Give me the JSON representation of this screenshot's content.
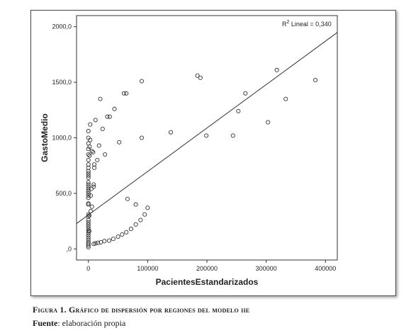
{
  "chart_data": {
    "type": "scatter",
    "xlabel": "PacientesEstandarizados",
    "ylabel": "GastoMedio",
    "xlim": [
      -20000,
      420000
    ],
    "ylim": [
      -100,
      2100
    ],
    "x_ticks": [
      0,
      100000,
      200000,
      300000,
      400000
    ],
    "x_tick_labels": [
      "0",
      "100000",
      "200000",
      "300000",
      "400000"
    ],
    "y_ticks": [
      0,
      500,
      1000,
      1500,
      2000
    ],
    "y_tick_labels": [
      ",0",
      "500,0",
      "1000,0",
      "1500,0",
      "2000,0"
    ],
    "annotation": {
      "prefix": "R",
      "superscript": "2",
      "text": " Lineal = 0,340"
    },
    "regression_line": {
      "x": [
        -20000,
        420000
      ],
      "y": [
        228,
        1948
      ]
    },
    "grid": false,
    "points": [
      [
        0,
        15
      ],
      [
        0,
        30
      ],
      [
        0,
        45
      ],
      [
        0,
        60
      ],
      [
        0,
        80
      ],
      [
        0,
        100
      ],
      [
        0,
        120
      ],
      [
        0,
        140
      ],
      [
        0,
        160
      ],
      [
        0,
        180
      ],
      [
        0,
        200
      ],
      [
        0,
        220
      ],
      [
        0,
        240
      ],
      [
        0,
        260
      ],
      [
        0,
        290
      ],
      [
        0,
        310
      ],
      [
        0,
        400
      ],
      [
        0,
        410
      ],
      [
        0,
        460
      ],
      [
        0,
        480
      ],
      [
        0,
        500
      ],
      [
        0,
        520
      ],
      [
        0,
        540
      ],
      [
        0,
        560
      ],
      [
        0,
        580
      ],
      [
        0,
        600
      ],
      [
        0,
        640
      ],
      [
        0,
        660
      ],
      [
        0,
        680
      ],
      [
        0,
        700
      ],
      [
        0,
        730
      ],
      [
        0,
        760
      ],
      [
        0,
        800
      ],
      [
        0,
        850
      ],
      [
        0,
        900
      ],
      [
        0,
        950
      ],
      [
        0,
        1000
      ],
      [
        0,
        1060
      ],
      [
        1500,
        160
      ],
      [
        1500,
        300
      ],
      [
        2000,
        840
      ],
      [
        2000,
        920
      ],
      [
        3000,
        1120
      ],
      [
        3000,
        980
      ],
      [
        4000,
        340
      ],
      [
        4000,
        480
      ],
      [
        5000,
        540
      ],
      [
        6000,
        380
      ],
      [
        6000,
        880
      ],
      [
        8000,
        870
      ],
      [
        9000,
        580
      ],
      [
        9000,
        560
      ],
      [
        10000,
        730
      ],
      [
        10000,
        760
      ],
      [
        12000,
        1160
      ],
      [
        15000,
        800
      ],
      [
        18000,
        930
      ],
      [
        20000,
        1350
      ],
      [
        24000,
        1080
      ],
      [
        28000,
        850
      ],
      [
        32000,
        1190
      ],
      [
        36000,
        1190
      ],
      [
        44000,
        1260
      ],
      [
        52000,
        960
      ],
      [
        60000,
        1400
      ],
      [
        64000,
        1400
      ],
      [
        90000,
        1510
      ],
      [
        90000,
        1000
      ],
      [
        66000,
        450
      ],
      [
        80000,
        400
      ],
      [
        9000,
        45
      ],
      [
        12000,
        50
      ],
      [
        16000,
        55
      ],
      [
        21000,
        60
      ],
      [
        27000,
        70
      ],
      [
        35000,
        75
      ],
      [
        42000,
        90
      ],
      [
        50000,
        110
      ],
      [
        57000,
        130
      ],
      [
        64000,
        150
      ],
      [
        72000,
        180
      ],
      [
        80000,
        220
      ],
      [
        88000,
        260
      ],
      [
        95000,
        310
      ],
      [
        100000,
        370
      ],
      [
        139000,
        1050
      ],
      [
        184000,
        1560
      ],
      [
        189000,
        1540
      ],
      [
        199000,
        1020
      ],
      [
        244000,
        1020
      ],
      [
        253000,
        1240
      ],
      [
        265000,
        1400
      ],
      [
        303000,
        1140
      ],
      [
        318000,
        1610
      ],
      [
        333000,
        1350
      ],
      [
        383000,
        1520
      ]
    ]
  },
  "caption": {
    "label": "Figura 1.",
    "text": " Gráfico de dispersión por regiones del modelo iie"
  },
  "source": {
    "label": "Fuente",
    "text": ": elaboración propia"
  },
  "colors": {
    "axis": "#333333",
    "point": "#333333",
    "line": "#333333",
    "text": "#222222"
  }
}
